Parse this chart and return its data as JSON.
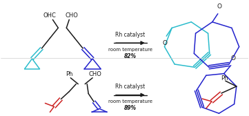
{
  "bg_color": "#ffffff",
  "black": "#1a1a1a",
  "cyan": "#2bbccc",
  "dark_blue": "#2222cc",
  "red": "#cc2222",
  "gray": "#888888",
  "reaction1_line1": "Rh catalyst",
  "reaction1_line2": "room temperature",
  "reaction1_line3": "82%",
  "reaction2_line1": "Rh catalyst",
  "reaction2_line2": "room temperature",
  "reaction2_line3": "89%",
  "lw": 1.1
}
